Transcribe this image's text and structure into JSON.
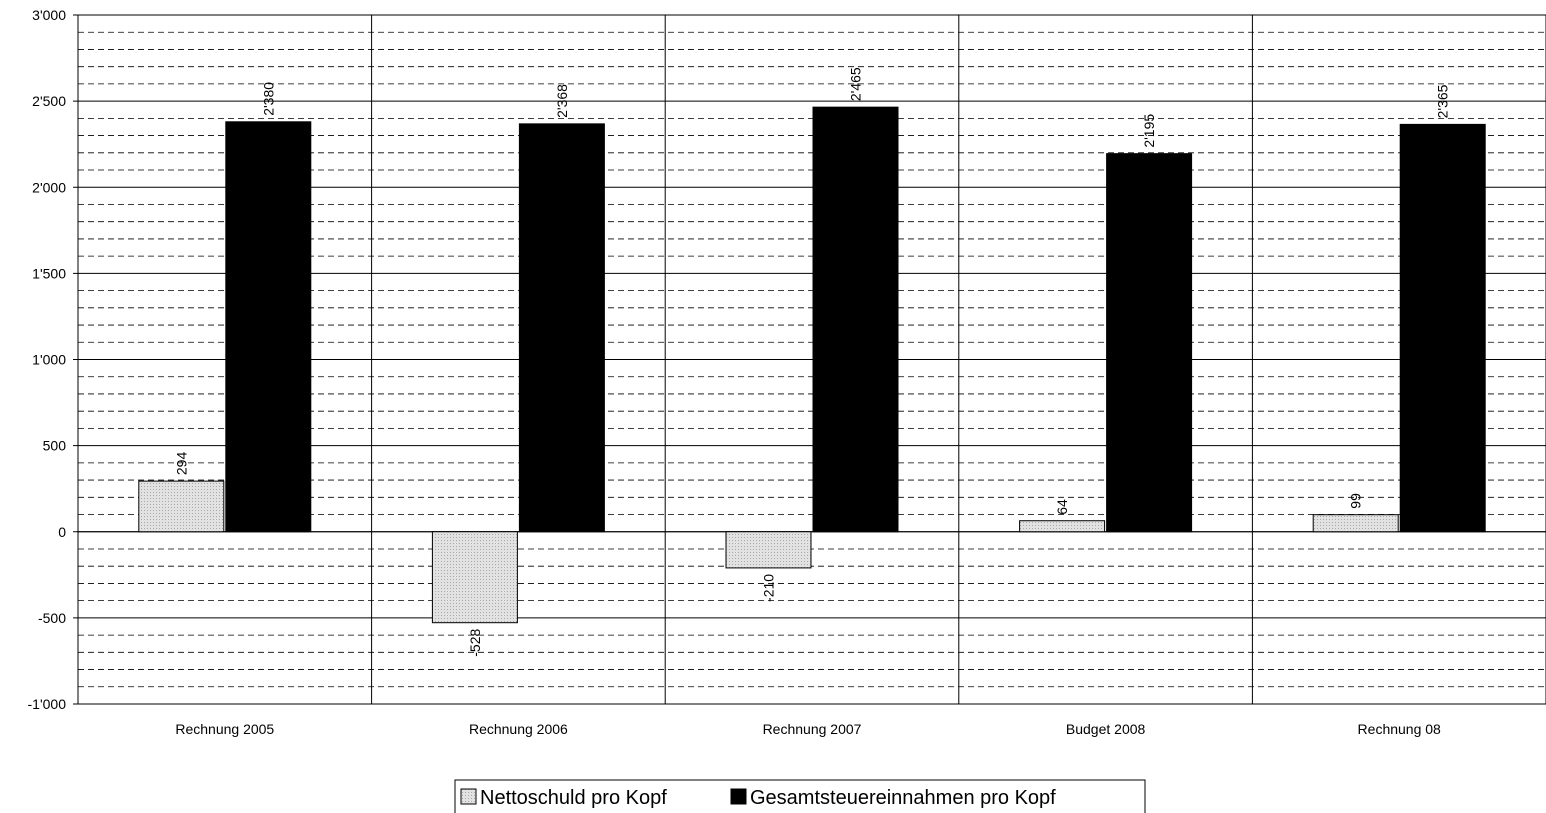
{
  "chart_data": {
    "type": "bar",
    "categories": [
      "Rechnung 2005",
      "Rechnung 2006",
      "Rechnung 2007",
      "Budget 2008",
      "Rechnung 08"
    ],
    "series": [
      {
        "name": "Nettoschuld pro Kopf",
        "values": [
          294,
          -528,
          -210,
          64,
          99
        ],
        "labels": [
          "294",
          "-528",
          "-210",
          "64",
          "99"
        ],
        "color": "#d4d4d4"
      },
      {
        "name": "Gesamtsteuereinnahmen pro Kopf",
        "values": [
          2380,
          2368,
          2465,
          2195,
          2365
        ],
        "labels": [
          "2'380",
          "2'368",
          "2'465",
          "2'195",
          "2'365"
        ],
        "color": "#000000"
      }
    ],
    "ylim": [
      -1000,
      3000
    ],
    "yticks": [
      3000,
      2500,
      2000,
      1500,
      1000,
      500,
      0,
      -500,
      -1000
    ],
    "ytick_labels": [
      "3'000",
      "2'500",
      "2'000",
      "1'500",
      "1'000",
      "500",
      "0",
      "-500",
      "-1'000"
    ],
    "minor_grid_step": 100,
    "grid": true,
    "legend_position": "bottom-center",
    "title": "",
    "xlabel": "",
    "ylabel": ""
  }
}
